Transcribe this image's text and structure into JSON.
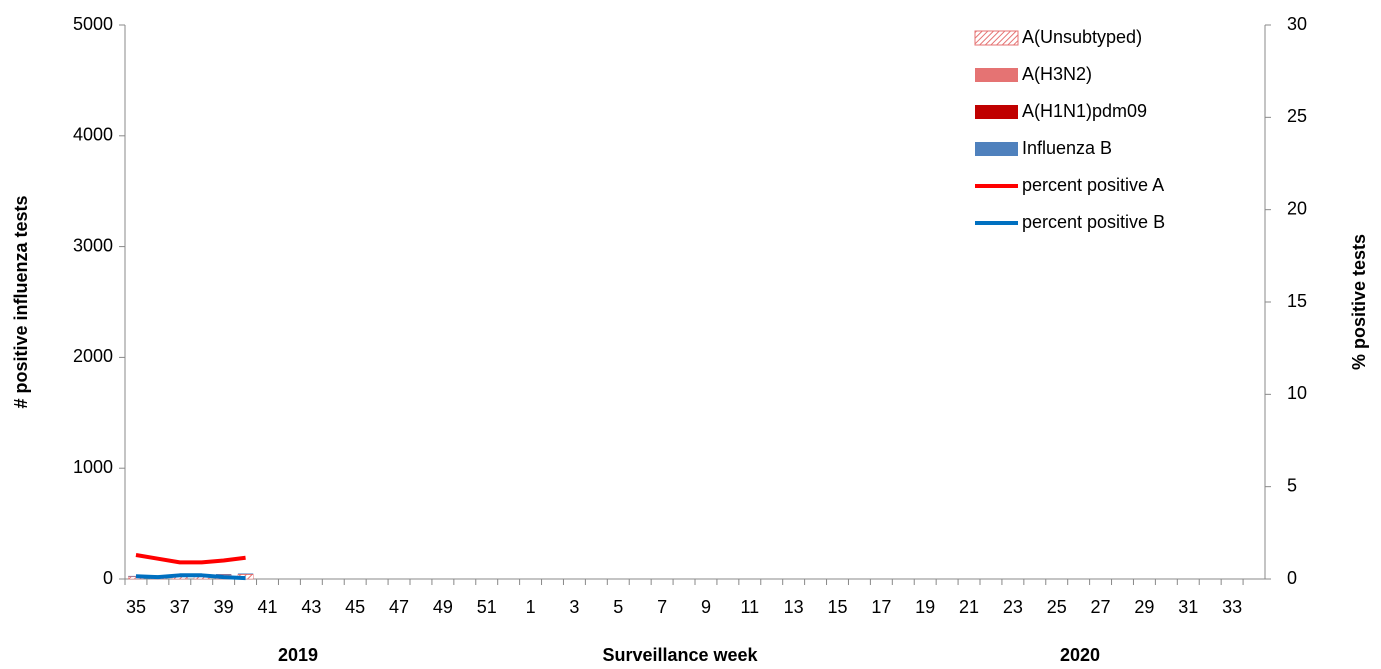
{
  "chart_data": {
    "type": "bar",
    "categories": [
      "35",
      null,
      "37",
      null,
      "39",
      null,
      "41",
      null,
      "43",
      null,
      "45",
      null,
      "47",
      null,
      "49",
      null,
      "51",
      null,
      "1",
      null,
      "3",
      null,
      "5",
      null,
      "7",
      null,
      "9",
      null,
      "11",
      null,
      "13",
      null,
      "15",
      null,
      "17",
      null,
      "19",
      null,
      "21",
      null,
      "23",
      null,
      "25",
      null,
      "27",
      null,
      "29",
      null,
      "31",
      null,
      "33",
      null
    ],
    "x_groups": [
      "2019",
      "2020"
    ],
    "xlabel": "Surveillance week",
    "ylabel": "# positive influenza tests",
    "y2label": "% positive tests",
    "ylim": [
      0,
      5000
    ],
    "yticks": [
      0,
      1000,
      2000,
      3000,
      4000,
      5000
    ],
    "y2lim": [
      0,
      30
    ],
    "y2ticks": [
      0,
      5,
      10,
      15,
      20,
      25,
      30
    ],
    "stacked": true,
    "legend": "upper right",
    "series": [
      {
        "name": "A(Unsubtyped)",
        "type": "bar",
        "color": "#e57373",
        "hatch": true,
        "values": [
          20,
          25,
          30,
          30,
          35,
          40,
          null,
          null,
          null,
          null,
          null,
          null,
          null,
          null,
          null,
          null,
          null,
          null,
          null,
          null,
          null,
          null,
          null,
          null,
          null,
          null,
          null,
          null,
          null,
          null,
          null,
          null,
          null,
          null,
          null,
          null,
          null,
          null,
          null,
          null,
          null,
          null,
          null,
          null,
          null,
          null,
          null,
          null,
          null,
          null,
          null,
          null
        ]
      },
      {
        "name": "A(H3N2)",
        "type": "bar",
        "color": "#e57373",
        "values": [
          2,
          2,
          3,
          3,
          3,
          3,
          null,
          null,
          null,
          null,
          null,
          null,
          null,
          null,
          null,
          null,
          null,
          null,
          null,
          null,
          null,
          null,
          null,
          null,
          null,
          null,
          null,
          null,
          null,
          null,
          null,
          null,
          null,
          null,
          null,
          null,
          null,
          null,
          null,
          null,
          null,
          null,
          null,
          null,
          null,
          null,
          null,
          null,
          null,
          null,
          null,
          null
        ]
      },
      {
        "name": "A(H1N1)pdm09",
        "type": "bar",
        "color": "#c00000",
        "values": [
          1,
          1,
          1,
          2,
          2,
          2,
          null,
          null,
          null,
          null,
          null,
          null,
          null,
          null,
          null,
          null,
          null,
          null,
          null,
          null,
          null,
          null,
          null,
          null,
          null,
          null,
          null,
          null,
          null,
          null,
          null,
          null,
          null,
          null,
          null,
          null,
          null,
          null,
          null,
          null,
          null,
          null,
          null,
          null,
          null,
          null,
          null,
          null,
          null,
          null,
          null,
          null
        ]
      },
      {
        "name": "Influenza B",
        "type": "bar",
        "color": "#4f81bd",
        "values": [
          5,
          5,
          6,
          6,
          5,
          5,
          null,
          null,
          null,
          null,
          null,
          null,
          null,
          null,
          null,
          null,
          null,
          null,
          null,
          null,
          null,
          null,
          null,
          null,
          null,
          null,
          null,
          null,
          null,
          null,
          null,
          null,
          null,
          null,
          null,
          null,
          null,
          null,
          null,
          null,
          null,
          null,
          null,
          null,
          null,
          null,
          null,
          null,
          null,
          null,
          null,
          null
        ]
      },
      {
        "name": "percent positive A",
        "type": "line",
        "axis": "y2",
        "color": "#ff0000",
        "values": [
          1.3,
          1.1,
          0.9,
          0.9,
          1.0,
          1.15,
          null,
          null,
          null,
          null,
          null,
          null,
          null,
          null,
          null,
          null,
          null,
          null,
          null,
          null,
          null,
          null,
          null,
          null,
          null,
          null,
          null,
          null,
          null,
          null,
          null,
          null,
          null,
          null,
          null,
          null,
          null,
          null,
          null,
          null,
          null,
          null,
          null,
          null,
          null,
          null,
          null,
          null,
          null,
          null,
          null,
          null
        ]
      },
      {
        "name": "percent positive B",
        "type": "line",
        "axis": "y2",
        "color": "#0070c0",
        "values": [
          0.15,
          0.1,
          0.2,
          0.2,
          0.1,
          0.05,
          null,
          null,
          null,
          null,
          null,
          null,
          null,
          null,
          null,
          null,
          null,
          null,
          null,
          null,
          null,
          null,
          null,
          null,
          null,
          null,
          null,
          null,
          null,
          null,
          null,
          null,
          null,
          null,
          null,
          null,
          null,
          null,
          null,
          null,
          null,
          null,
          null,
          null,
          null,
          null,
          null,
          null,
          null,
          null,
          null,
          null
        ]
      }
    ]
  }
}
